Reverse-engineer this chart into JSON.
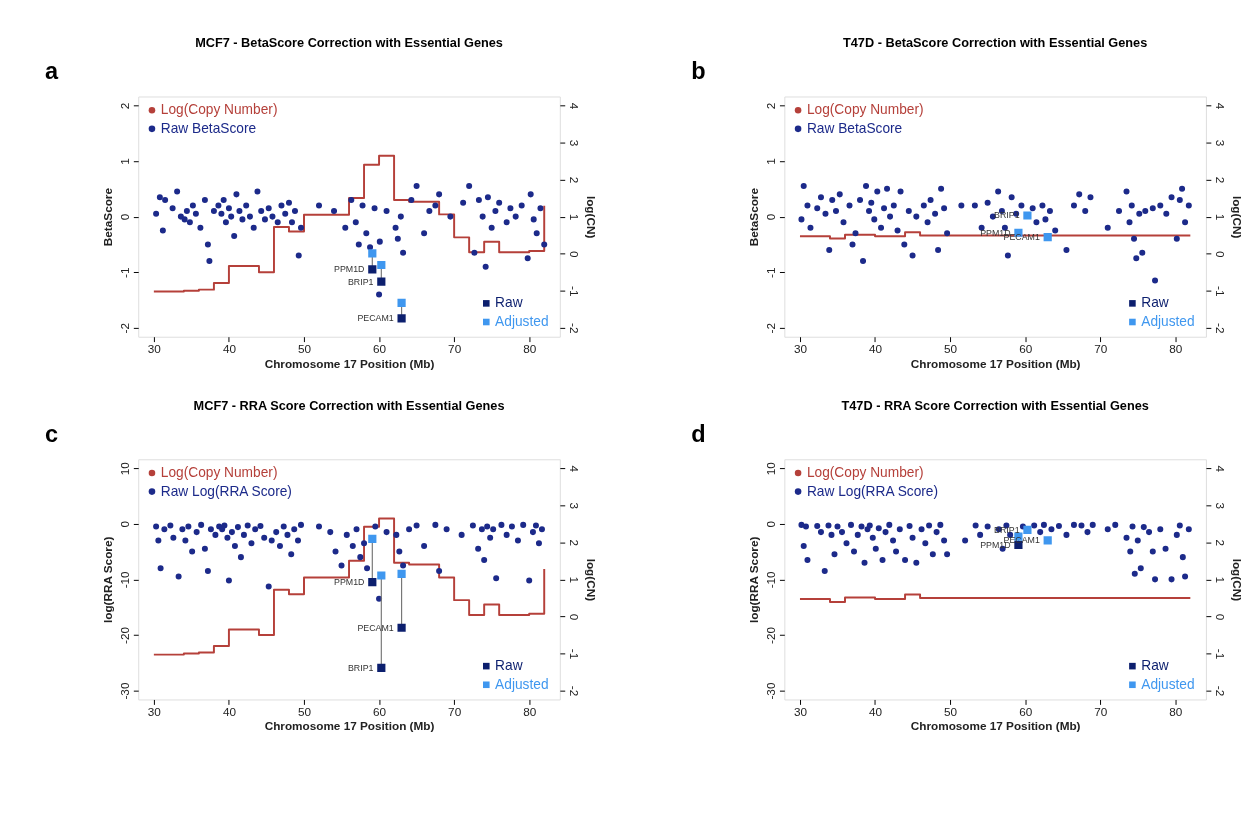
{
  "chart_data": [
    {
      "type": "scatter",
      "title": "MCF7 - BetaScore Correction with Essential Genes",
      "xlabel": "Chromosome 17 Position (Mb)",
      "ylabel": "BetaScore",
      "y2label": "log(CN)",
      "xlim": [
        27.92,
        84.08
      ],
      "xticks": [
        30,
        40,
        50,
        60,
        70,
        80
      ],
      "ylim": [
        -2.16,
        2.16
      ],
      "yticks": [
        -2,
        -1,
        0,
        1,
        2
      ],
      "y2lim": [
        -2.24,
        4.24
      ],
      "y2ticks": [
        -2,
        -1,
        0,
        1,
        2,
        3,
        4
      ],
      "legend": "top left",
      "annotations": [
        "a",
        {
          "text": "PPM1D",
          "x": 59.1,
          "y": -0.95
        },
        {
          "text": "BRIP1",
          "x": 60.3,
          "y": -1.17
        },
        {
          "text": "PECAM1",
          "x": 63.0,
          "y": -1.83
        }
      ],
      "series": [
        {
          "name": "Log(Copy Number)",
          "type": "step",
          "axis": "y2",
          "marker": "none",
          "color": "#b5403a",
          "x": [
            30,
            34,
            36,
            38,
            40,
            44,
            46,
            48,
            50,
            56,
            58,
            60,
            62,
            64,
            68,
            70,
            72,
            74,
            76,
            80,
            82
          ],
          "values": [
            -1.02,
            -1.0,
            -0.97,
            -0.79,
            -0.33,
            -0.5,
            0.72,
            0.6,
            1.05,
            1.5,
            2.4,
            2.64,
            1.45,
            1.4,
            1.06,
            0.44,
            0.04,
            0.32,
            0.04,
            0.07,
            1.29
          ]
        },
        {
          "name": "Raw BetaScore",
          "marker": "circle",
          "color": "#1c2a8a",
          "x": [
            30.3,
            30.8,
            31.2,
            31.5,
            32.5,
            33.1,
            33.6,
            34.1,
            34.4,
            34.8,
            35.2,
            35.6,
            36.2,
            36.8,
            37.2,
            37.4,
            38.0,
            38.6,
            39.0,
            39.3,
            39.6,
            40.0,
            40.3,
            40.7,
            41.0,
            41.4,
            41.8,
            42.3,
            42.8,
            43.3,
            43.8,
            44.3,
            44.8,
            45.3,
            45.8,
            46.5,
            47.0,
            47.5,
            48.0,
            48.4,
            48.8,
            49.3,
            49.6,
            52.0,
            54.0,
            55.5,
            56.3,
            56.9,
            57.3,
            57.8,
            58.3,
            58.8,
            59.4,
            60.1,
            60.0,
            61.0,
            62.2,
            62.5,
            62.9,
            63.2,
            64.3,
            65.0,
            66.0,
            66.7,
            67.5,
            68.0,
            69.5,
            71.2,
            72.0,
            72.7,
            73.3,
            73.8,
            74.2,
            74.5,
            75.0,
            75.5,
            76.0,
            77.0,
            77.5,
            78.2,
            79.0,
            79.8,
            80.2,
            80.6,
            81.0,
            81.5,
            82.0
          ],
          "values": [
            0.05,
            0.35,
            -0.25,
            0.3,
            0.15,
            0.45,
            0.0,
            -0.05,
            0.1,
            -0.1,
            0.2,
            0.05,
            -0.2,
            0.3,
            -0.5,
            -0.8,
            0.1,
            0.2,
            0.05,
            0.3,
            -0.1,
            0.15,
            0.0,
            -0.35,
            0.4,
            0.1,
            -0.05,
            0.2,
            0.0,
            -0.2,
            0.45,
            0.1,
            -0.05,
            0.15,
            0.0,
            -0.1,
            0.2,
            0.05,
            0.25,
            -0.1,
            0.1,
            -0.7,
            -0.2,
            0.2,
            0.1,
            -0.2,
            0.3,
            -0.1,
            -0.5,
            0.2,
            -0.3,
            -0.55,
            0.15,
            -0.45,
            -1.4,
            0.1,
            -0.2,
            -0.4,
            0.0,
            -0.65,
            0.3,
            0.55,
            -0.3,
            0.1,
            0.2,
            0.4,
            0.0,
            0.25,
            0.55,
            -0.65,
            0.3,
            0.0,
            -0.9,
            0.35,
            -0.2,
            0.1,
            0.25,
            -0.1,
            0.15,
            0.0,
            0.2,
            -0.75,
            0.4,
            -0.05,
            -0.3,
            0.15,
            -0.5
          ]
        },
        {
          "name": "Raw",
          "type": "scatter",
          "marker": "square",
          "color": "#0c1f6e",
          "x": [
            59.1,
            60.3,
            63.0
          ],
          "values": [
            -0.95,
            -1.17,
            -1.83
          ]
        },
        {
          "name": "Adjusted",
          "type": "scatter",
          "marker": "square",
          "color": "#3f97ef",
          "x": [
            59.1,
            60.3,
            63.0
          ],
          "values": [
            -0.66,
            -0.87,
            -1.55
          ]
        }
      ]
    },
    {
      "type": "scatter",
      "title": "T47D - BetaScore Correction with Essential Genes",
      "xlabel": "Chromosome 17 Position (Mb)",
      "ylabel": "BetaScore",
      "y2label": "log(CN)",
      "xlim": [
        27.92,
        84.08
      ],
      "xticks": [
        30,
        40,
        50,
        60,
        70,
        80
      ],
      "ylim": [
        -2.16,
        2.16
      ],
      "yticks": [
        -2,
        -1,
        0,
        1,
        2
      ],
      "y2lim": [
        -2.24,
        4.24
      ],
      "y2ticks": [
        -2,
        -1,
        0,
        1,
        2,
        3,
        4
      ],
      "legend": "top left",
      "annotations": [
        "b",
        {
          "text": "BRIP1",
          "x": 60.3,
          "y": 0.02
        },
        {
          "text": "PPM1D",
          "x": 59.1,
          "y": -0.29
        },
        {
          "text": "PECAM1",
          "x": 63.0,
          "y": -0.37
        }
      ],
      "series": [
        {
          "name": "Log(Copy Number)",
          "type": "step",
          "axis": "y2",
          "marker": "none",
          "color": "#b5403a",
          "x": [
            30,
            34,
            36,
            40,
            44,
            46,
            82
          ],
          "values": [
            0.47,
            0.41,
            0.51,
            0.47,
            0.58,
            0.49,
            0.49
          ]
        },
        {
          "name": "Raw BetaScore",
          "marker": "circle",
          "color": "#1c2a8a",
          "x": [
            30.2,
            30.5,
            31.0,
            31.4,
            32.3,
            32.8,
            33.4,
            33.9,
            34.3,
            34.8,
            35.3,
            35.8,
            36.6,
            37.0,
            37.4,
            38.0,
            38.4,
            38.8,
            39.2,
            39.5,
            39.9,
            40.3,
            40.8,
            41.2,
            41.6,
            42.0,
            42.5,
            43.0,
            43.4,
            43.9,
            44.5,
            45.0,
            45.5,
            46.5,
            47.0,
            47.4,
            48.0,
            48.4,
            48.8,
            49.2,
            49.6,
            51.5,
            53.3,
            54.2,
            55.0,
            55.7,
            56.4,
            56.9,
            57.3,
            57.7,
            58.2,
            58.8,
            59.5,
            61.0,
            61.5,
            62.3,
            62.7,
            63.3,
            64.0,
            65.5,
            66.5,
            67.2,
            68.0,
            68.7,
            71.0,
            72.5,
            73.5,
            73.9,
            74.2,
            74.5,
            74.8,
            75.2,
            75.6,
            76.0,
            77.0,
            77.3,
            78.0,
            78.8,
            79.5,
            80.2,
            80.6,
            80.9,
            81.3,
            81.8
          ],
          "values": [
            -0.05,
            0.55,
            0.2,
            -0.2,
            0.15,
            0.35,
            0.05,
            -0.6,
            0.3,
            0.1,
            0.4,
            -0.1,
            0.2,
            -0.5,
            -0.3,
            0.3,
            -0.8,
            0.55,
            0.1,
            0.25,
            -0.05,
            0.45,
            -0.2,
            0.15,
            0.5,
            0.0,
            0.2,
            -0.25,
            0.45,
            -0.5,
            0.1,
            -0.7,
            0.0,
            0.2,
            -0.1,
            0.3,
            0.05,
            -0.6,
            0.5,
            0.15,
            -0.3,
            0.2,
            0.2,
            -0.2,
            0.25,
            0.0,
            0.45,
            0.1,
            -0.2,
            -0.7,
            0.35,
            0.05,
            0.2,
            0.15,
            -0.1,
            0.2,
            -0.05,
            0.1,
            -0.25,
            -0.6,
            0.2,
            0.4,
            0.1,
            0.35,
            -0.2,
            0.1,
            0.45,
            -0.1,
            0.2,
            -0.4,
            -0.75,
            0.05,
            -0.65,
            0.1,
            0.15,
            -1.15,
            0.2,
            0.05,
            0.35,
            -0.4,
            0.3,
            0.5,
            -0.1,
            0.2
          ]
        },
        {
          "name": "Raw",
          "type": "scatter",
          "marker": "square",
          "color": "#0c1f6e"
        },
        {
          "name": "Adjusted",
          "type": "scatter",
          "marker": "square",
          "color": "#3f97ef",
          "x": [
            59.1,
            60.3,
            63.0
          ],
          "values": [
            -0.29,
            0.02,
            -0.37
          ]
        }
      ]
    },
    {
      "type": "scatter",
      "title": "MCF7 - RRA Score Correction with Essential Genes",
      "xlabel": "Chromosome 17 Position (Mb)",
      "ylabel": "log(RRA Score)",
      "y2label": "log(CN)",
      "xlim": [
        27.92,
        84.08
      ],
      "xticks": [
        30,
        40,
        50,
        60,
        70,
        80
      ],
      "ylim": [
        -31.6,
        11.6
      ],
      "yticks": [
        -30,
        -20,
        -10,
        0,
        10
      ],
      "y2lim": [
        -2.24,
        4.24
      ],
      "y2ticks": [
        -2,
        -1,
        0,
        1,
        2,
        3,
        4
      ],
      "legend": "top left",
      "annotations": [
        "c",
        {
          "text": "PPM1D",
          "x": 59.1,
          "y": -10.5
        },
        {
          "text": "PECAM1",
          "x": 63.0,
          "y": -18.7
        },
        {
          "text": "BRIP1",
          "x": 60.3,
          "y": -25.9
        }
      ],
      "series": [
        {
          "name": "Log(Copy Number)",
          "type": "step",
          "axis": "y2",
          "marker": "none",
          "color": "#b5403a",
          "x": [
            30,
            34,
            36,
            38,
            40,
            44,
            46,
            48,
            50,
            56,
            58,
            60,
            62,
            64,
            68,
            70,
            72,
            74,
            76,
            80,
            82
          ],
          "values": [
            -1.03,
            -1.0,
            -0.97,
            -0.8,
            -0.35,
            -0.5,
            0.72,
            0.6,
            1.05,
            1.5,
            2.42,
            2.64,
            1.45,
            1.4,
            1.05,
            0.44,
            0.04,
            0.32,
            0.04,
            0.07,
            1.28
          ]
        },
        {
          "name": "Raw Log(RRA Score)",
          "marker": "circle",
          "color": "#1c2a8a",
          "x": [
            30.3,
            30.6,
            30.9,
            31.4,
            32.2,
            32.6,
            33.3,
            33.8,
            34.2,
            34.6,
            35.1,
            35.7,
            36.3,
            36.8,
            37.2,
            37.6,
            38.2,
            38.7,
            39.1,
            39.4,
            39.8,
            40.0,
            40.4,
            40.8,
            41.2,
            41.6,
            42.0,
            42.5,
            43.0,
            43.5,
            44.2,
            44.7,
            45.3,
            45.7,
            46.3,
            46.8,
            47.3,
            47.8,
            48.3,
            48.7,
            49.2,
            49.6,
            52.0,
            53.5,
            54.2,
            55.0,
            55.7,
            56.5,
            57.0,
            57.5,
            58.0,
            58.4,
            59.5,
            60.0,
            61.0,
            62.3,
            62.7,
            63.2,
            64.0,
            65.0,
            66.0,
            67.5,
            68.0,
            69.0,
            71.0,
            72.5,
            73.2,
            73.7,
            74.0,
            74.4,
            74.8,
            75.2,
            75.6,
            76.3,
            77.0,
            77.7,
            78.5,
            79.2,
            80.0,
            80.5,
            80.9,
            81.3,
            81.7
          ],
          "values": [
            -0.5,
            -3.0,
            -8.0,
            -1.0,
            -0.3,
            -2.5,
            -9.5,
            -1.0,
            -3.0,
            -0.5,
            -5.0,
            -1.5,
            -0.2,
            -4.5,
            -8.5,
            -1.0,
            -2.0,
            -0.5,
            -1.0,
            -0.3,
            -2.5,
            -10.2,
            -1.5,
            -4.0,
            -0.6,
            -6.0,
            -2.0,
            -0.3,
            -3.5,
            -1.0,
            -0.4,
            -2.5,
            -11.3,
            -3.0,
            -1.5,
            -4.0,
            -0.5,
            -2.0,
            -5.5,
            -1.0,
            -3.0,
            -0.2,
            -0.5,
            -1.5,
            -5.0,
            -7.5,
            -2.0,
            -4.0,
            -1.0,
            -6.0,
            -3.5,
            -8.0,
            -0.5,
            -13.5,
            -1.5,
            -2.0,
            -5.0,
            -7.5,
            -1.0,
            -0.3,
            -4.0,
            -0.2,
            -8.5,
            -1.0,
            -2.0,
            -0.3,
            -4.5,
            -1.0,
            -6.5,
            -0.5,
            -2.5,
            -1.0,
            -9.8,
            -0.2,
            -2.0,
            -0.5,
            -3.0,
            -0.2,
            -10.2,
            -1.5,
            -0.3,
            -3.5,
            -1.0
          ]
        },
        {
          "name": "Raw",
          "type": "scatter",
          "marker": "square",
          "color": "#0c1f6e",
          "x": [
            59.1,
            60.3,
            63.0
          ],
          "values": [
            -10.5,
            -25.9,
            -18.7
          ]
        },
        {
          "name": "Adjusted",
          "type": "scatter",
          "marker": "square",
          "color": "#3f97ef",
          "x": [
            59.1,
            60.3,
            63.0
          ],
          "values": [
            -2.7,
            -9.3,
            -9.0
          ]
        }
      ]
    },
    {
      "type": "scatter",
      "title": "T47D - RRA Score Correction with Essential Genes",
      "xlabel": "Chromosome 17 Position (Mb)",
      "ylabel": "log(RRA Score)",
      "y2label": "log(CN)",
      "xlim": [
        27.92,
        84.08
      ],
      "xticks": [
        30,
        40,
        50,
        60,
        70,
        80
      ],
      "ylim": [
        -31.6,
        11.6
      ],
      "yticks": [
        -30,
        -20,
        -10,
        0,
        10
      ],
      "y2lim": [
        -2.24,
        4.24
      ],
      "y2ticks": [
        -2,
        -1,
        0,
        1,
        2,
        3,
        4
      ],
      "legend": "top left",
      "annotations": [
        "d",
        {
          "text": "BRIP1",
          "x": 60.3,
          "y": -1.1
        },
        {
          "text": "PPM1D",
          "x": 59.1,
          "y": -3.8
        },
        {
          "text": "PECAM1",
          "x": 63.0,
          "y": -3.0
        }
      ],
      "series": [
        {
          "name": "Log(Copy Number)",
          "type": "step",
          "axis": "y2",
          "marker": "none",
          "color": "#b5403a",
          "x": [
            30,
            34,
            36,
            40,
            44,
            46,
            82
          ],
          "values": [
            0.47,
            0.39,
            0.51,
            0.47,
            0.59,
            0.5,
            0.5
          ]
        },
        {
          "name": "Raw Log(RRA Score)",
          "marker": "circle",
          "color": "#1c2a8a",
          "x": [
            30.2,
            30.5,
            30.8,
            31.0,
            32.3,
            32.8,
            33.3,
            33.8,
            34.2,
            34.6,
            35.0,
            35.6,
            36.2,
            36.8,
            37.2,
            37.7,
            38.2,
            38.6,
            39.0,
            39.3,
            39.7,
            40.1,
            40.5,
            41.0,
            41.4,
            41.9,
            42.4,
            42.8,
            43.3,
            44.0,
            44.6,
            45.0,
            45.5,
            46.2,
            46.7,
            47.2,
            47.7,
            48.2,
            48.7,
            49.2,
            49.6,
            52.0,
            53.4,
            54.0,
            55.0,
            56.5,
            57.0,
            57.5,
            58.0,
            59.7,
            61.2,
            62.0,
            62.5,
            63.5,
            64.5,
            65.5,
            66.5,
            67.5,
            68.3,
            69.0,
            71.0,
            72.0,
            73.5,
            74.0,
            74.3,
            74.6,
            75.0,
            75.4,
            75.8,
            76.5,
            77.0,
            77.3,
            78.0,
            78.7,
            79.5,
            80.2,
            80.6,
            81.0,
            81.3,
            81.8
          ],
          "values": [
            -0.2,
            -4.0,
            -0.5,
            -6.5,
            -0.4,
            -1.5,
            -8.5,
            -0.3,
            -2.0,
            -5.5,
            -0.5,
            -1.5,
            -3.5,
            -0.2,
            -5.0,
            -2.0,
            -0.5,
            -7.0,
            -1.0,
            -0.3,
            -2.5,
            -4.5,
            -0.8,
            -6.5,
            -1.5,
            -0.2,
            -3.0,
            -5.0,
            -1.0,
            -6.5,
            -0.4,
            -2.5,
            -7.0,
            -1.0,
            -3.5,
            -0.3,
            -5.5,
            -1.5,
            -0.2,
            -3.0,
            -5.5,
            -3.0,
            -0.3,
            -2.0,
            -0.5,
            -1.0,
            -4.5,
            -0.3,
            -2.0,
            -0.5,
            -0.3,
            -1.5,
            -0.2,
            -1.0,
            -0.4,
            -2.0,
            -0.2,
            -0.3,
            -1.5,
            -0.2,
            -1.0,
            -0.2,
            -2.5,
            -5.0,
            -0.5,
            -9.0,
            -3.0,
            -8.0,
            -0.6,
            -1.5,
            -5.0,
            -10.0,
            -1.0,
            -4.5,
            -10.0,
            -2.0,
            -0.3,
            -6.0,
            -9.5,
            -1.0
          ]
        },
        {
          "name": "Raw",
          "type": "scatter",
          "marker": "square",
          "color": "#0c1f6e",
          "x": [
            59.1
          ],
          "values": [
            -3.8
          ]
        },
        {
          "name": "Adjusted",
          "type": "scatter",
          "marker": "square",
          "color": "#3f97ef",
          "x": [
            59.1,
            60.3,
            63.0
          ],
          "values": [
            -2.3,
            -1.1,
            -3.0
          ]
        }
      ]
    }
  ]
}
